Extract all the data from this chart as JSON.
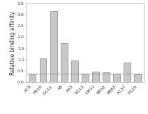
{
  "categories": [
    "AC8",
    "HK10",
    "GG11",
    "A8",
    "A43",
    "EO12",
    "OB12",
    "EB32",
    "EB82",
    "AC37",
    "FG25"
  ],
  "values": [
    0.35,
    1.05,
    3.15,
    1.75,
    0.95,
    0.38,
    0.48,
    0.45,
    0.38,
    0.88,
    0.35
  ],
  "bar_color": "#c8c8c8",
  "bar_edge_color": "#888888",
  "dashed_line_y": 0.38,
  "ylim": [
    0,
    3.5
  ],
  "yticks": [
    0.0,
    0.5,
    1.0,
    1.5,
    2.0,
    2.5,
    3.0,
    3.5
  ],
  "ylabel": "Relative binding affinity",
  "background_color": "#ffffff",
  "fig_background": "#ffffff",
  "tick_label_fontsize": 4.5,
  "ylabel_fontsize": 5.5,
  "linewidth": 0.5
}
